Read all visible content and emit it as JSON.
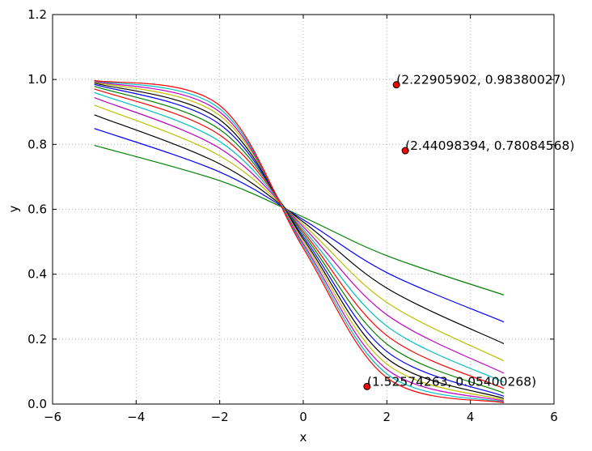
{
  "chart_data": {
    "type": "line",
    "title": "",
    "xlabel": "x",
    "ylabel": "y",
    "xlim": [
      -6,
      6
    ],
    "ylim": [
      0.0,
      1.2
    ],
    "grid": true,
    "legend": "none",
    "xticks": [
      "−6",
      "−4",
      "−2",
      "0",
      "2",
      "4",
      "6"
    ],
    "yticks": [
      "0.0",
      "0.2",
      "0.4",
      "0.6",
      "0.8",
      "1.0",
      "1.2"
    ],
    "x_range_of_curves": [
      -5,
      4.8
    ],
    "curve_family": "y = 1 - 1/(1 + exp(-k*(x + 0.4)) * 0.6667), evaluated for k = 0.25 ... 1.6",
    "series": [
      {
        "color": "#008000",
        "values": [
          [
            -5,
            0.797
          ],
          [
            -2,
            0.688
          ],
          [
            0,
            0.576
          ],
          [
            2,
            0.457
          ],
          [
            4.8,
            0.336
          ]
        ]
      },
      {
        "color": "#0000ff",
        "values": [
          [
            -5,
            0.849
          ],
          [
            -2,
            0.715
          ],
          [
            0,
            0.568
          ],
          [
            2,
            0.405
          ],
          [
            4.8,
            0.253
          ]
        ]
      },
      {
        "color": "#000000",
        "values": [
          [
            -5,
            0.891
          ],
          [
            -2,
            0.74
          ],
          [
            0,
            0.561
          ],
          [
            2,
            0.357
          ],
          [
            4.8,
            0.186
          ]
        ]
      },
      {
        "color": "#bfbf00",
        "values": [
          [
            -5,
            0.921
          ],
          [
            -2,
            0.765
          ],
          [
            0,
            0.553
          ],
          [
            2,
            0.313
          ],
          [
            4.8,
            0.133
          ]
        ]
      },
      {
        "color": "#bf00bf",
        "values": [
          [
            -5,
            0.944
          ],
          [
            -2,
            0.788
          ],
          [
            0,
            0.546
          ],
          [
            2,
            0.275
          ],
          [
            4.8,
            0.095
          ]
        ]
      },
      {
        "color": "#00bfbf",
        "values": [
          [
            -5,
            0.96
          ],
          [
            -2,
            0.809
          ],
          [
            0,
            0.538
          ],
          [
            2,
            0.24
          ],
          [
            4.8,
            0.067
          ]
        ]
      },
      {
        "color": "#ff0000",
        "values": [
          [
            -5,
            0.971
          ],
          [
            -2,
            0.829
          ],
          [
            0,
            0.531
          ],
          [
            2,
            0.211
          ],
          [
            4.8,
            0.048
          ]
        ]
      },
      {
        "color": "#008000",
        "values": [
          [
            -5,
            0.979
          ],
          [
            -2,
            0.846
          ],
          [
            0,
            0.524
          ],
          [
            2,
            0.185
          ],
          [
            4.8,
            0.034
          ]
        ]
      },
      {
        "color": "#0000ff",
        "values": [
          [
            -5,
            0.985
          ],
          [
            -2,
            0.862
          ],
          [
            0,
            0.516
          ],
          [
            2,
            0.162
          ],
          [
            4.8,
            0.024
          ]
        ]
      },
      {
        "color": "#000000",
        "values": [
          [
            -5,
            0.989
          ],
          [
            -2,
            0.876
          ],
          [
            0,
            0.509
          ],
          [
            2,
            0.141
          ],
          [
            4.8,
            0.017
          ]
        ]
      },
      {
        "color": "#bfbf00",
        "values": [
          [
            -5,
            0.992
          ],
          [
            -2,
            0.889
          ],
          [
            0,
            0.502
          ],
          [
            2,
            0.123
          ],
          [
            4.8,
            0.012
          ]
        ]
      },
      {
        "color": "#bf00bf",
        "values": [
          [
            -5,
            0.994
          ],
          [
            -2,
            0.9
          ],
          [
            0,
            0.494
          ],
          [
            2,
            0.107
          ],
          [
            4.8,
            0.009
          ]
        ]
      },
      {
        "color": "#00bfbf",
        "values": [
          [
            -5,
            0.996
          ],
          [
            -2,
            0.91
          ],
          [
            0,
            0.487
          ],
          [
            2,
            0.093
          ],
          [
            4.8,
            0.006
          ]
        ]
      },
      {
        "color": "#ff0000",
        "values": [
          [
            -5,
            0.997
          ],
          [
            -2,
            0.92
          ],
          [
            0,
            0.48
          ],
          [
            2,
            0.081
          ],
          [
            4.8,
            0.004
          ]
        ]
      }
    ],
    "points": [
      {
        "x": 2.22905902,
        "y": 0.98380027,
        "label": "(2.22905902, 0.98380027)",
        "color": "#ff0000"
      },
      {
        "x": 2.44098394,
        "y": 0.78084568,
        "label": "(2.44098394, 0.78084568)",
        "color": "#ff0000"
      },
      {
        "x": 1.52574263,
        "y": 0.05400268,
        "label": "(1.52574263, 0.05400268)",
        "color": "#ff0000"
      }
    ]
  }
}
